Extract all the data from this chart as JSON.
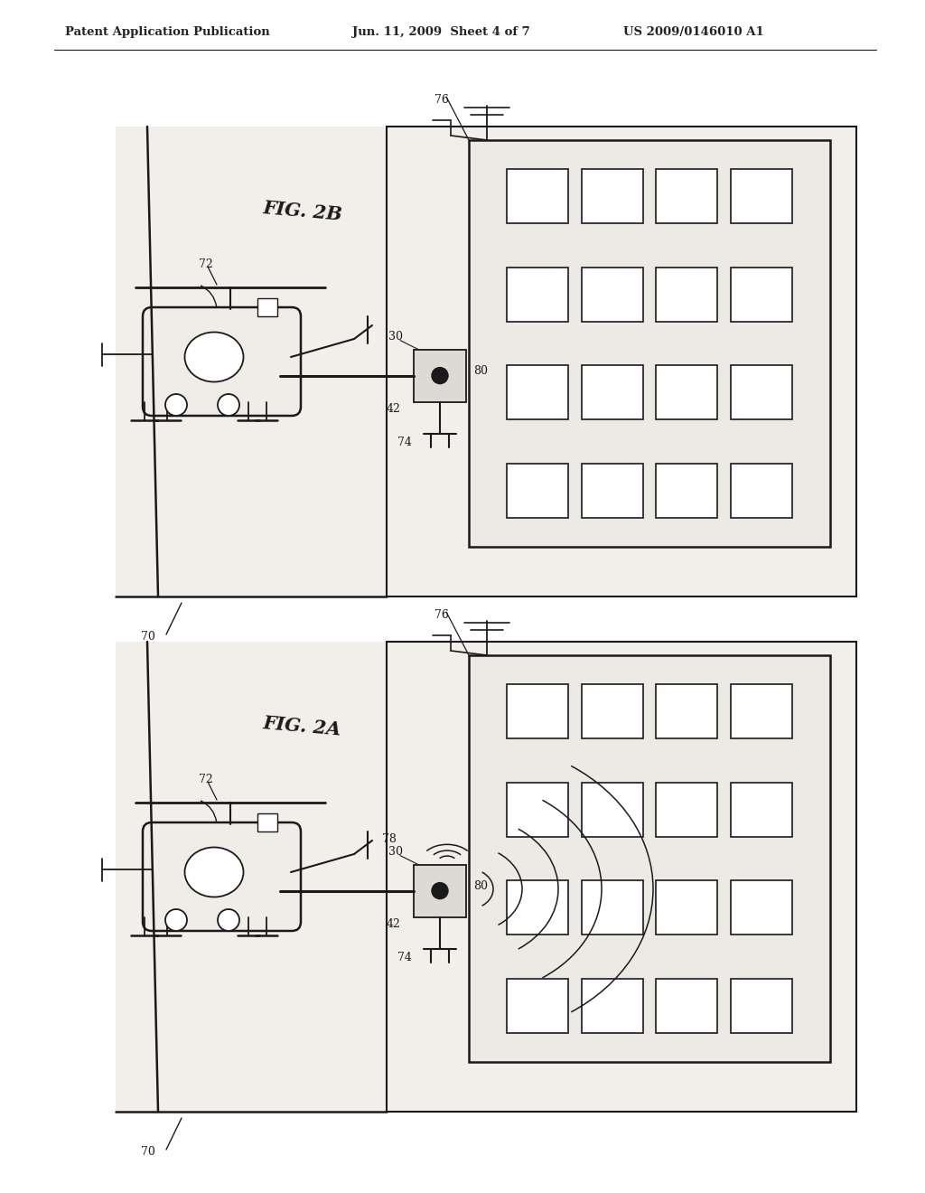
{
  "bg_color": "#f0ede8",
  "inner_bg": "#e8e5e0",
  "white": "#ffffff",
  "line_color": "#1a1a1a",
  "header_left": "Patent Application Publication",
  "header_mid": "Jun. 11, 2009  Sheet 4 of 7",
  "header_right": "US 2009/0146010 A1"
}
